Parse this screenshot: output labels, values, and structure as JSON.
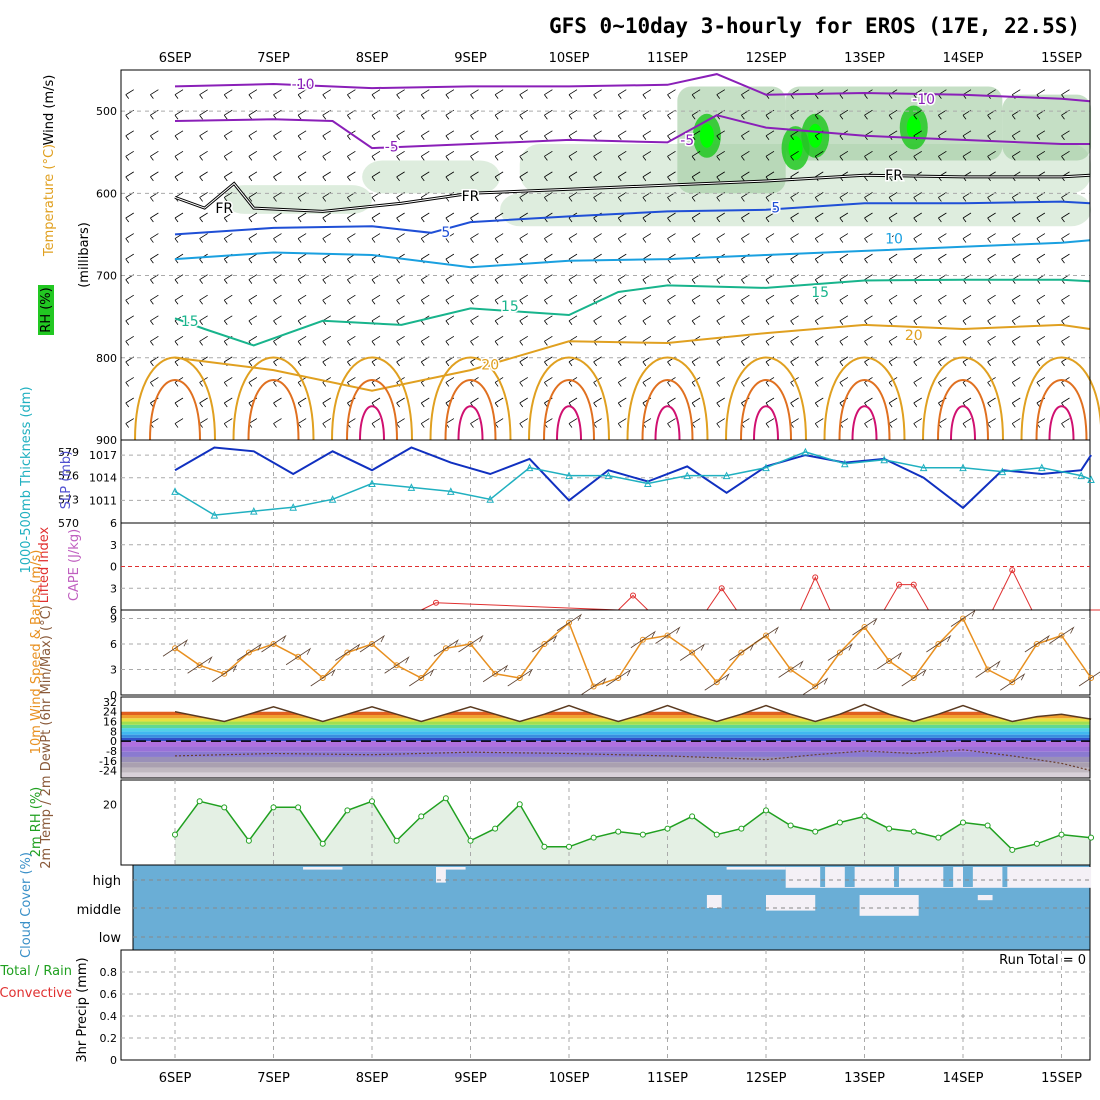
{
  "title": "GFS 0~10day 3-hourly for EROS (17E, 22.5S)",
  "colors": {
    "purple": "#8a1fb8",
    "black": "#000000",
    "blue": "#1f4fd6",
    "lightblue": "#1aa0e0",
    "teal": "#18b48c",
    "orange": "#e0a020",
    "darkorange": "#e07020",
    "magenta": "#d01070",
    "slp": "#1030c0",
    "thick": "#20b0c0",
    "li": "#e03030",
    "wind10": "#e89020",
    "rh2m": "#20a020",
    "cloud": "#6aaed6",
    "clear": "#f4f0f6"
  },
  "chart_data": [
    {
      "type": "line",
      "panel": "upper-air cross-section",
      "x_ticks": [
        "6SEP",
        "7SEP",
        "8SEP",
        "9SEP",
        "10SEP",
        "11SEP",
        "12SEP",
        "13SEP",
        "14SEP",
        "15SEP"
      ],
      "ylabel": "(millibars)",
      "side_labels": [
        "Wind (m/s)",
        "Temperature (°C)",
        "RH (%)"
      ],
      "y_ticks": [
        500,
        600,
        700,
        800,
        900
      ],
      "ylim": [
        450,
        900
      ],
      "isotherm_labels": [
        {
          "text": "-10",
          "day": 1.3,
          "p": 467
        },
        {
          "text": "-10",
          "day": 7.6,
          "p": 485
        },
        {
          "text": "-5",
          "day": 2.2,
          "p": 543
        },
        {
          "text": "-5",
          "day": 5.2,
          "p": 535
        },
        {
          "text": "FR",
          "day": 0.5,
          "p": 618
        },
        {
          "text": "FR",
          "day": 3.0,
          "p": 603
        },
        {
          "text": "FR",
          "day": 7.3,
          "p": 578
        },
        {
          "text": "5",
          "day": 2.75,
          "p": 647
        },
        {
          "text": "5",
          "day": 6.1,
          "p": 617
        },
        {
          "text": "10",
          "day": 7.3,
          "p": 655
        },
        {
          "text": "15",
          "day": 0.15,
          "p": 755
        },
        {
          "text": "15",
          "day": 3.4,
          "p": 737
        },
        {
          "text": "15",
          "day": 6.55,
          "p": 720
        },
        {
          "text": "20",
          "day": 3.2,
          "p": 808
        },
        {
          "text": "20",
          "day": 7.5,
          "p": 772
        }
      ],
      "series": [
        {
          "level": -10,
          "pressure_by_day": [
            [
              0,
              470
            ],
            [
              1,
              467
            ],
            [
              2,
              472
            ],
            [
              3,
              470
            ],
            [
              4,
              470
            ],
            [
              5,
              468
            ],
            [
              5.5,
              455
            ],
            [
              6,
              480
            ],
            [
              7,
              478
            ],
            [
              8,
              480
            ],
            [
              9,
              485
            ],
            [
              9.3,
              488
            ]
          ]
        },
        {
          "level": -5,
          "pressure_by_day": [
            [
              0,
              512
            ],
            [
              1,
              510
            ],
            [
              1.6,
              512
            ],
            [
              2,
              545
            ],
            [
              3,
              540
            ],
            [
              4,
              535
            ],
            [
              5,
              538
            ],
            [
              5.5,
              505
            ],
            [
              6,
              520
            ],
            [
              7,
              530
            ],
            [
              8,
              535
            ],
            [
              9,
              540
            ],
            [
              9.3,
              540
            ]
          ]
        },
        {
          "level": 0,
          "pressure_by_day": [
            [
              0,
              605
            ],
            [
              0.3,
              618
            ],
            [
              0.6,
              588
            ],
            [
              0.8,
              618
            ],
            [
              1.5,
              622
            ],
            [
              2.3,
              612
            ],
            [
              3,
              600
            ],
            [
              4,
              595
            ],
            [
              5,
              590
            ],
            [
              6,
              585
            ],
            [
              7,
              578
            ],
            [
              8,
              580
            ],
            [
              9,
              580
            ],
            [
              9.3,
              578
            ]
          ]
        },
        {
          "level": 5,
          "pressure_by_day": [
            [
              0,
              650
            ],
            [
              1,
              642
            ],
            [
              2,
              640
            ],
            [
              2.6,
              648
            ],
            [
              3,
              635
            ],
            [
              4,
              628
            ],
            [
              5,
              622
            ],
            [
              6,
              620
            ],
            [
              7,
              612
            ],
            [
              8,
              612
            ],
            [
              9,
              610
            ],
            [
              9.3,
              612
            ]
          ]
        },
        {
          "level": 10,
          "pressure_by_day": [
            [
              0,
              680
            ],
            [
              1,
              672
            ],
            [
              2,
              675
            ],
            [
              3,
              690
            ],
            [
              4,
              682
            ],
            [
              5,
              680
            ],
            [
              6,
              675
            ],
            [
              7,
              670
            ],
            [
              8,
              665
            ],
            [
              9,
              660
            ],
            [
              9.3,
              657
            ]
          ]
        },
        {
          "level": 15,
          "pressure_by_day": [
            [
              0,
              752
            ],
            [
              0.3,
              765
            ],
            [
              0.8,
              785
            ],
            [
              1.5,
              755
            ],
            [
              2.3,
              760
            ],
            [
              3,
              740
            ],
            [
              4,
              748
            ],
            [
              4.5,
              720
            ],
            [
              5,
              712
            ],
            [
              6,
              715
            ],
            [
              7,
              706
            ],
            [
              8,
              705
            ],
            [
              9,
              705
            ],
            [
              9.3,
              707
            ]
          ]
        },
        {
          "level": 20,
          "pressure_by_day": [
            [
              0,
              800
            ],
            [
              1,
              815
            ],
            [
              2,
              840
            ],
            [
              3,
              815
            ],
            [
              4,
              780
            ],
            [
              5,
              782
            ],
            [
              6,
              770
            ],
            [
              7,
              760
            ],
            [
              8,
              765
            ],
            [
              9,
              760
            ],
            [
              9.3,
              765
            ]
          ]
        }
      ],
      "rh_cores": [
        [
          5.4,
          530
        ],
        [
          6.5,
          530
        ],
        [
          7.5,
          520
        ],
        [
          6.3,
          545
        ]
      ]
    },
    {
      "type": "line",
      "panel": "thickness and sea level pressure",
      "left_axis": {
        "label": "1000-500mb Thickness (dm)",
        "ticks": [
          570,
          573,
          576,
          579
        ],
        "ylim": [
          570,
          580.5
        ]
      },
      "right_axis": {
        "label": "SLP (mb)",
        "ticks": [
          1011,
          1014,
          1017
        ],
        "ylim": [
          1008,
          1019
        ]
      },
      "series": [
        {
          "name": "SLP (mb)",
          "x_days": [
            0,
            0.4,
            0.8,
            1.2,
            1.6,
            2.0,
            2.4,
            2.8,
            3.2,
            3.6,
            4.0,
            4.4,
            4.8,
            5.2,
            5.6,
            6.0,
            6.4,
            6.8,
            7.2,
            7.6,
            8.0,
            8.4,
            8.8,
            9.2,
            9.3
          ],
          "values": [
            1015,
            1018,
            1017.5,
            1014.5,
            1017.5,
            1015,
            1018,
            1016,
            1014.5,
            1016.5,
            1011,
            1015,
            1013.5,
            1015.5,
            1012,
            1015.5,
            1017,
            1016,
            1016.5,
            1014,
            1010,
            1015,
            1014.5,
            1015,
            1017
          ]
        },
        {
          "name": "Thickness (dm)",
          "x_days": [
            0,
            0.4,
            0.8,
            1.2,
            1.6,
            2.0,
            2.4,
            2.8,
            3.2,
            3.6,
            4.0,
            4.4,
            4.8,
            5.2,
            5.6,
            6.0,
            6.4,
            6.8,
            7.2,
            7.6,
            8.0,
            8.4,
            8.8,
            9.2,
            9.3
          ],
          "values": [
            574,
            571,
            571.5,
            572,
            573,
            575,
            574.5,
            574,
            573,
            577,
            576,
            576,
            575,
            576,
            576,
            577,
            579,
            577.5,
            578,
            577,
            577,
            576.5,
            577,
            576,
            575.5
          ]
        }
      ]
    },
    {
      "type": "line",
      "panel": "lifted index and CAPE",
      "left_axis": {
        "label": "Lifted Index",
        "ticks": [
          -6,
          -3,
          0,
          3,
          6
        ],
        "ylim": [
          -6,
          6
        ]
      },
      "right_axis": {
        "label": "CAPE (J/kg)"
      },
      "series": [
        {
          "name": "Lifted Index",
          "x_days": [
            2.5,
            2.65,
            4.5,
            4.65,
            4.8,
            5.4,
            5.55,
            5.7,
            6.35,
            6.5,
            6.65,
            7.2,
            7.35,
            7.5,
            7.65,
            8.3,
            8.5,
            8.7,
            9.4,
            9.55,
            9.7
          ],
          "values": [
            6,
            5,
            6,
            4,
            6,
            6,
            3,
            6,
            6,
            1.5,
            6,
            6,
            2.5,
            2.5,
            6,
            6,
            0.5,
            6,
            6,
            4,
            6
          ]
        }
      ]
    },
    {
      "type": "line",
      "panel": "10m wind",
      "ylabel": "10m Wind Speed & Barbs (m/s)",
      "y_ticks": [
        0,
        3,
        6,
        9
      ],
      "ylim": [
        0,
        10
      ],
      "series": [
        {
          "name": "10m Wind Speed",
          "x_days": [
            0,
            0.25,
            0.5,
            0.75,
            1.0,
            1.25,
            1.5,
            1.75,
            2.0,
            2.25,
            2.5,
            2.75,
            3.0,
            3.25,
            3.5,
            3.75,
            4.0,
            4.25,
            4.5,
            4.75,
            5.0,
            5.25,
            5.5,
            5.75,
            6.0,
            6.25,
            6.5,
            6.75,
            7.0,
            7.25,
            7.5,
            7.75,
            8.0,
            8.25,
            8.5,
            8.75,
            9.0,
            9.3
          ],
          "values": [
            5.5,
            3.5,
            2.5,
            5,
            6,
            4.5,
            2,
            5,
            6,
            3.5,
            2,
            5.5,
            6,
            2.5,
            2,
            6,
            8.5,
            1,
            2,
            6.5,
            7,
            5,
            1.5,
            5,
            7,
            3,
            1,
            5,
            8,
            4,
            2,
            6,
            9,
            3,
            1.5,
            6,
            7,
            2
          ]
        }
      ]
    },
    {
      "type": "area",
      "panel": "2m temperature and dew point",
      "ylabel": "2m Temp / 2m DewPt (6hr Min/Max) (°C)",
      "y_ticks": [
        -24,
        -16,
        -8,
        0,
        8,
        16,
        24,
        32
      ],
      "ylim": [
        -30,
        36
      ],
      "series": [
        {
          "name": "2m Temp",
          "x_days": [
            0,
            0.25,
            0.5,
            0.75,
            1.0,
            1.25,
            1.5,
            1.75,
            2.0,
            2.25,
            2.5,
            2.75,
            3.0,
            3.25,
            3.5,
            3.75,
            4.0,
            4.25,
            4.5,
            4.75,
            5.0,
            5.25,
            5.5,
            5.75,
            6.0,
            6.25,
            6.5,
            6.75,
            7.0,
            7.25,
            7.5,
            7.75,
            8.0,
            8.25,
            8.5,
            8.75,
            9.0,
            9.3
          ],
          "values": [
            24,
            20,
            16,
            22,
            28,
            22,
            16,
            22,
            28,
            22,
            16,
            22,
            28,
            22,
            16,
            22,
            29,
            22,
            16,
            22,
            29,
            22,
            16,
            22,
            29,
            22,
            16,
            22,
            30,
            22,
            16,
            22,
            29,
            22,
            16,
            20,
            22,
            18
          ]
        },
        {
          "name": "2m DewPt",
          "x_days": [
            0,
            1,
            2,
            3,
            4,
            5,
            6,
            6.5,
            7,
            7.5,
            8,
            8.5,
            9,
            9.3
          ],
          "values": [
            -12,
            -10,
            -11,
            -9,
            -10,
            -12,
            -15,
            -11,
            -8,
            -10,
            -7,
            -12,
            -18,
            -24
          ]
        }
      ]
    },
    {
      "type": "line",
      "panel": "2m relative humidity",
      "ylabel": "2m RH (%)",
      "y_ticks": [
        20
      ],
      "ylim": [
        0,
        28
      ],
      "series": [
        {
          "name": "2m RH",
          "x_days": [
            0,
            0.25,
            0.5,
            0.75,
            1.0,
            1.25,
            1.5,
            1.75,
            2.0,
            2.25,
            2.5,
            2.75,
            3.0,
            3.25,
            3.5,
            3.75,
            4.0,
            4.25,
            4.5,
            4.75,
            5.0,
            5.25,
            5.5,
            5.75,
            6.0,
            6.25,
            6.5,
            6.75,
            7.0,
            7.25,
            7.5,
            7.75,
            8.0,
            8.25,
            8.5,
            8.75,
            9.0,
            9.3
          ],
          "values": [
            10,
            21,
            19,
            8,
            19,
            19,
            7,
            18,
            21,
            8,
            16,
            22,
            8,
            12,
            20,
            6,
            6,
            9,
            11,
            10,
            12,
            16,
            10,
            12,
            18,
            13,
            11,
            14,
            16,
            12,
            11,
            9,
            14,
            13,
            5,
            7,
            10,
            9
          ]
        }
      ]
    },
    {
      "type": "heatmap",
      "panel": "cloud cover",
      "ylabel": "Cloud Cover (%)",
      "y_ticks": [
        "high",
        "middle",
        "low"
      ],
      "clear_patches": [
        {
          "layer": "high",
          "x_days": [
            1.3,
            1.7
          ],
          "fraction": 0.1
        },
        {
          "layer": "high",
          "x_days": [
            2.65,
            2.95
          ],
          "fraction": 0.1
        },
        {
          "layer": "high",
          "x_days": [
            2.65,
            2.75
          ],
          "fraction": 0.6
        },
        {
          "layer": "high",
          "x_days": [
            5.6,
            6.2
          ],
          "fraction": 0.1
        },
        {
          "layer": "high",
          "x_days": [
            6.2,
            9.3
          ],
          "fraction": 0.8
        },
        {
          "layer": "middle",
          "x_days": [
            5.4,
            5.55
          ],
          "fraction": 0.5
        },
        {
          "layer": "middle",
          "x_days": [
            6.0,
            6.5
          ],
          "fraction": 0.6
        },
        {
          "layer": "middle",
          "x_days": [
            6.95,
            7.55
          ],
          "fraction": 0.8
        },
        {
          "layer": "middle",
          "x_days": [
            8.15,
            8.3
          ],
          "fraction": 0.2
        }
      ]
    },
    {
      "type": "line",
      "panel": "3hr precipitation",
      "ylabel": "3hr Precip (mm)",
      "side_labels": [
        "Total / Rain",
        "Convective"
      ],
      "y_ticks": [
        0,
        0.2,
        0.4,
        0.6,
        0.8
      ],
      "ylim": [
        0,
        1
      ],
      "run_total_label": "Run Total = 0",
      "series": []
    }
  ]
}
